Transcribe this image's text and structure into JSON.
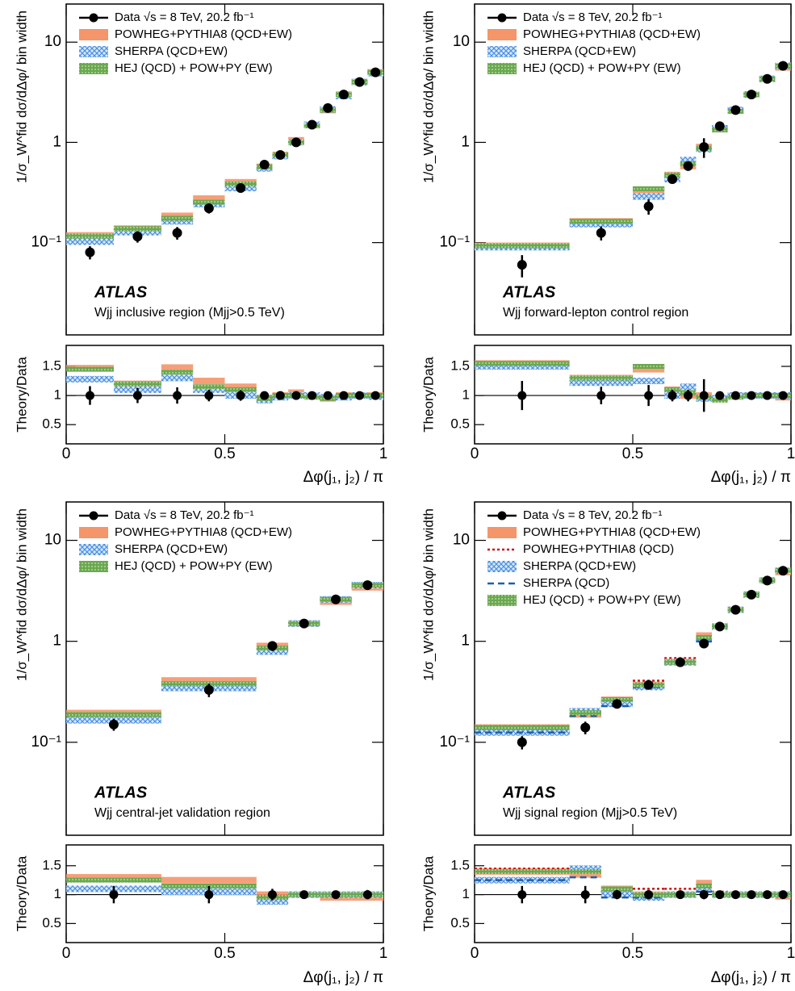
{
  "chart_data": [
    {
      "type": "step-histogram",
      "atlas_label": "ATLAS",
      "region_label": "Wjj inclusive region (Mjj>0.5 TeV)",
      "y_label": "1/σ_W^fid dσ/dΔφ/ bin width",
      "ratio_y_label": "Theory/Data",
      "x_label": "Δφ(j₁, j₂) / π",
      "bins": [
        0,
        0.15,
        0.3,
        0.4,
        0.5,
        0.6,
        0.65,
        0.7,
        0.75,
        0.8,
        0.85,
        0.9,
        0.95,
        1
      ],
      "xlim": [
        0,
        1
      ],
      "xticks": [
        0,
        0.5,
        1
      ],
      "ylim": [
        0.012,
        24
      ],
      "log_y": true,
      "yticks": [
        {
          "value": 0.1,
          "label": "10⁻¹"
        },
        1,
        10
      ],
      "ratio_ylim": [
        0.17,
        1.86
      ],
      "ratio_yticks": [
        0.5,
        1,
        1.5
      ],
      "ratio_line": 1,
      "series": [
        {
          "name": "Data √s = 8 TeV, 20.2 fb⁻¹",
          "style": "points",
          "color": "#000000",
          "values": [
            0.08,
            0.115,
            0.125,
            0.22,
            0.35,
            0.6,
            0.75,
            1.0,
            1.5,
            2.2,
            3.0,
            4.0,
            5.0
          ],
          "errors": [
            0.012,
            0.015,
            0.018,
            0.025,
            0.03,
            0.04,
            0.04,
            0.05,
            0.06,
            0.08,
            0.1,
            0.12,
            0.15
          ],
          "ratio": [
            1,
            1,
            1,
            1,
            1,
            1,
            1,
            1,
            1,
            1,
            1,
            1,
            1
          ],
          "ratio_errors": [
            0.16,
            0.13,
            0.14,
            0.1,
            0.09,
            0.07,
            0.05,
            0.05,
            0.04,
            0.04,
            0.04,
            0.04,
            0.04
          ]
        },
        {
          "name": "POWHEG+PYTHIA8 (QCD+EW)",
          "style": "band",
          "color": "#f4956a",
          "values": [
            0.118,
            0.138,
            0.185,
            0.275,
            0.4,
            0.57,
            0.75,
            1.05,
            1.5,
            2.1,
            3.0,
            4.0,
            5.0
          ],
          "ratio": [
            1.47,
            1.2,
            1.48,
            1.25,
            1.15,
            0.95,
            1.0,
            1.05,
            1.0,
            0.95,
            1.0,
            1.0,
            1.0
          ]
        },
        {
          "name": "SHERPA (QCD+EW)",
          "style": "hatch",
          "color": "#4a90e2",
          "values": [
            0.102,
            0.127,
            0.163,
            0.242,
            0.35,
            0.55,
            0.73,
            1.0,
            1.5,
            2.13,
            2.9,
            4.0,
            4.9
          ],
          "ratio": [
            1.28,
            1.1,
            1.3,
            1.1,
            1.0,
            0.92,
            0.97,
            1.0,
            1.0,
            0.97,
            0.97,
            1.0,
            0.98
          ]
        },
        {
          "name": "HEJ (QCD) + POW+PY (EW)",
          "style": "green-band",
          "color": "#6aa84f",
          "values": [
            0.116,
            0.138,
            0.175,
            0.253,
            0.385,
            0.57,
            0.75,
            1.0,
            1.46,
            2.1,
            3.0,
            4.0,
            5.0
          ],
          "ratio": [
            1.45,
            1.2,
            1.4,
            1.15,
            1.1,
            0.95,
            1.0,
            1.0,
            0.97,
            0.95,
            1.0,
            1.0,
            1.0
          ]
        }
      ]
    },
    {
      "type": "step-histogram",
      "atlas_label": "ATLAS",
      "region_label": "Wjj forward-lepton control region",
      "y_label": "1/σ_W^fid dσ/dΔφ/ bin width",
      "ratio_y_label": "Theory/Data",
      "x_label": "Δφ(j₁, j₂) / π",
      "bins": [
        0,
        0.3,
        0.5,
        0.6,
        0.65,
        0.7,
        0.75,
        0.8,
        0.85,
        0.9,
        0.95,
        1
      ],
      "xlim": [
        0,
        1
      ],
      "xticks": [
        0,
        0.5,
        1
      ],
      "ylim": [
        0.012,
        24
      ],
      "log_y": true,
      "yticks": [
        {
          "value": 0.1,
          "label": "10⁻¹"
        },
        1,
        10
      ],
      "ratio_ylim": [
        0.17,
        1.86
      ],
      "ratio_yticks": [
        0.5,
        1,
        1.5
      ],
      "ratio_line": 1,
      "series": [
        {
          "name": "Data √s = 8 TeV, 20.2 fb⁻¹",
          "style": "points",
          "color": "#000000",
          "values": [
            0.06,
            0.125,
            0.23,
            0.43,
            0.58,
            0.9,
            1.45,
            2.1,
            3.0,
            4.3,
            5.8
          ],
          "errors": [
            0.015,
            0.02,
            0.04,
            0.04,
            0.06,
            0.2,
            0.1,
            0.12,
            0.15,
            0.2,
            0.25
          ],
          "ratio": [
            1,
            1,
            1,
            1,
            1,
            1,
            1,
            1,
            1,
            1,
            1
          ],
          "ratio_errors": [
            0.25,
            0.15,
            0.18,
            0.1,
            0.1,
            0.28,
            0.06,
            0.05,
            0.05,
            0.05,
            0.05
          ]
        },
        {
          "name": "POWHEG+PYTHIA8 (QCD+EW)",
          "style": "band",
          "color": "#f4956a",
          "values": [
            0.093,
            0.163,
            0.334,
            0.473,
            0.58,
            0.9,
            1.38,
            2.1,
            3.0,
            4.3,
            5.6
          ],
          "ratio": [
            1.55,
            1.3,
            1.45,
            1.1,
            1.0,
            1.0,
            0.95,
            1.0,
            1.0,
            1.0,
            0.97
          ]
        },
        {
          "name": "SHERPA (QCD+EW)",
          "style": "hatch",
          "color": "#4a90e2",
          "values": [
            0.09,
            0.153,
            0.288,
            0.43,
            0.667,
            0.855,
            1.38,
            2.1,
            3.0,
            4.3,
            5.8
          ],
          "ratio": [
            1.5,
            1.22,
            1.25,
            1.0,
            1.15,
            0.95,
            0.95,
            1.0,
            1.0,
            1.0,
            1.0
          ]
        },
        {
          "name": "HEJ (QCD) + POW+PY (EW)",
          "style": "green-band",
          "color": "#6aa84f",
          "values": [
            0.093,
            0.163,
            0.345,
            0.473,
            0.61,
            0.873,
            1.33,
            2.04,
            3.0,
            4.3,
            5.8
          ],
          "ratio": [
            1.55,
            1.3,
            1.5,
            1.1,
            1.05,
            0.97,
            0.92,
            0.97,
            1.0,
            1.0,
            1.0
          ]
        }
      ]
    },
    {
      "type": "step-histogram",
      "atlas_label": "ATLAS",
      "region_label": "Wjj central-jet validation region",
      "y_label": "1/σ_W^fid dσ/dΔφ/ bin width",
      "ratio_y_label": "Theory/Data",
      "x_label": "Δφ(j₁, j₂) / π",
      "bins": [
        0,
        0.3,
        0.6,
        0.7,
        0.8,
        0.9,
        1
      ],
      "xlim": [
        0,
        1
      ],
      "xticks": [
        0,
        0.5,
        1
      ],
      "ylim": [
        0.012,
        24
      ],
      "log_y": true,
      "yticks": [
        {
          "value": 0.1,
          "label": "10⁻¹"
        },
        1,
        10
      ],
      "ratio_ylim": [
        0.17,
        1.86
      ],
      "ratio_yticks": [
        0.5,
        1,
        1.5
      ],
      "ratio_line": 1,
      "series": [
        {
          "name": "Data √s = 8 TeV, 20.2 fb⁻¹",
          "style": "points",
          "color": "#000000",
          "values": [
            0.15,
            0.33,
            0.9,
            1.5,
            2.6,
            3.6
          ],
          "errors": [
            0.02,
            0.05,
            0.1,
            0.08,
            0.12,
            0.3
          ],
          "ratio": [
            1,
            1,
            1,
            1,
            1,
            1
          ],
          "ratio_errors": [
            0.15,
            0.15,
            0.1,
            0.06,
            0.05,
            0.08
          ]
        },
        {
          "name": "POWHEG+PYTHIA8 (QCD+EW)",
          "style": "band",
          "color": "#f4956a",
          "values": [
            0.195,
            0.41,
            0.9,
            1.5,
            2.47,
            3.42
          ],
          "ratio": [
            1.3,
            1.25,
            1.0,
            1.0,
            0.95,
            0.95
          ]
        },
        {
          "name": "SHERPA (QCD+EW)",
          "style": "hatch",
          "color": "#4a90e2",
          "values": [
            0.165,
            0.345,
            0.79,
            1.5,
            2.6,
            3.6
          ],
          "ratio": [
            1.1,
            1.05,
            0.88,
            1.0,
            1.0,
            1.0
          ]
        },
        {
          "name": "HEJ (QCD) + POW+PY (EW)",
          "style": "green-band",
          "color": "#6aa84f",
          "values": [
            0.188,
            0.38,
            0.855,
            1.5,
            2.6,
            3.6
          ],
          "ratio": [
            1.25,
            1.15,
            0.95,
            1.0,
            1.0,
            1.0
          ]
        }
      ]
    },
    {
      "type": "step-histogram",
      "atlas_label": "ATLAS",
      "region_label": "Wjj signal region (Mjj>0.5 TeV)",
      "y_label": "1/σ_W^fid dσ/dΔφ/ bin width",
      "ratio_y_label": "Theory/Data",
      "x_label": "Δφ(j₁, j₂) / π",
      "bins": [
        0,
        0.3,
        0.4,
        0.5,
        0.6,
        0.7,
        0.75,
        0.8,
        0.85,
        0.9,
        0.95,
        1
      ],
      "xlim": [
        0,
        1
      ],
      "xticks": [
        0,
        0.5,
        1
      ],
      "ylim": [
        0.012,
        24
      ],
      "log_y": true,
      "yticks": [
        {
          "value": 0.1,
          "label": "10⁻¹"
        },
        1,
        10
      ],
      "ratio_ylim": [
        0.17,
        1.86
      ],
      "ratio_yticks": [
        0.5,
        1,
        1.5
      ],
      "ratio_line": 1,
      "series": [
        {
          "name": "Data √s = 8 TeV, 20.2 fb⁻¹",
          "style": "points",
          "color": "#000000",
          "values": [
            0.1,
            0.14,
            0.24,
            0.37,
            0.62,
            0.95,
            1.4,
            2.05,
            2.9,
            4.0,
            5.0
          ],
          "errors": [
            0.015,
            0.02,
            0.02,
            0.03,
            0.04,
            0.08,
            0.06,
            0.08,
            0.1,
            0.15,
            0.2
          ],
          "ratio": [
            1,
            1,
            1,
            1,
            1,
            1,
            1,
            1,
            1,
            1,
            1
          ],
          "ratio_errors": [
            0.15,
            0.15,
            0.08,
            0.08,
            0.06,
            0.08,
            0.05,
            0.04,
            0.04,
            0.04,
            0.04
          ]
        },
        {
          "name": "POWHEG+PYTHIA8 (QCD+EW)",
          "style": "band",
          "color": "#f4956a",
          "values": [
            0.14,
            0.189,
            0.264,
            0.37,
            0.62,
            1.14,
            1.4,
            2.05,
            2.9,
            4.0,
            4.85
          ],
          "ratio": [
            1.4,
            1.35,
            1.1,
            1.0,
            1.0,
            1.2,
            1.0,
            1.0,
            1.0,
            1.0,
            0.97
          ]
        },
        {
          "name": "POWHEG+PYTHIA8 (QCD)",
          "style": "dotted",
          "color": "#d01010",
          "values": [
            0.145,
            0.203,
            0.252,
            0.407,
            0.682,
            1.045,
            1.47,
            2.05,
            2.9,
            4.0,
            4.85
          ],
          "ratio": [
            1.45,
            1.45,
            1.05,
            1.1,
            1.1,
            1.1,
            1.05,
            1.0,
            1.0,
            1.0,
            0.97
          ]
        },
        {
          "name": "SHERPA (QCD+EW)",
          "style": "hatch",
          "color": "#4a90e2",
          "values": [
            0.125,
            0.203,
            0.24,
            0.352,
            0.62,
            1.045,
            1.4,
            2.05,
            2.9,
            4.0,
            5.0
          ],
          "ratio": [
            1.25,
            1.45,
            1.0,
            0.95,
            1.0,
            1.1,
            1.0,
            1.0,
            1.0,
            1.0,
            1.0
          ]
        },
        {
          "name": "SHERPA (QCD)",
          "style": "dashed",
          "color": "#1f5fa8",
          "values": [
            0.125,
            0.182,
            0.228,
            0.352,
            0.62,
            0.998,
            1.4,
            2.05,
            2.9,
            4.0,
            5.0
          ],
          "ratio": [
            1.25,
            1.3,
            0.95,
            0.95,
            1.0,
            1.05,
            1.0,
            1.0,
            1.0,
            1.0,
            1.0
          ]
        },
        {
          "name": "HEJ (QCD) + POW+PY (EW)",
          "style": "green-band",
          "color": "#6aa84f",
          "values": [
            0.14,
            0.196,
            0.264,
            0.37,
            0.62,
            1.09,
            1.4,
            2.05,
            2.9,
            4.0,
            5.0
          ],
          "ratio": [
            1.4,
            1.4,
            1.1,
            1.0,
            1.0,
            1.15,
            1.0,
            1.0,
            1.0,
            1.0,
            1.0
          ]
        }
      ]
    }
  ]
}
